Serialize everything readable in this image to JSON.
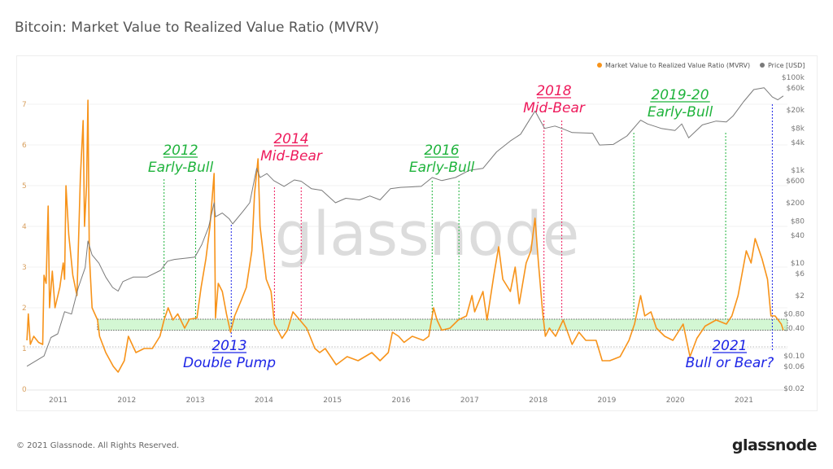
{
  "title": "Bitcoin: Market Value to Realized Value Ratio (MVRV)",
  "footer": "© 2021 Glassnode. All Rights Reserved.",
  "logo": "glassnode",
  "watermark": "glassnode",
  "colors": {
    "mvrv": "#f7931a",
    "price": "#7a7a7a",
    "green": "#1fb33c",
    "red": "#ee1b5c",
    "blue": "#1c24e6",
    "band": "#c8f5c8"
  },
  "chart_data": {
    "type": "line",
    "title": "Bitcoin: Market Value to Realized Value Ratio (MVRV)",
    "legend": {
      "position": "top-right",
      "items": [
        "Market Value to Realized Value Ratio (MVRV)",
        "Price [USD]"
      ]
    },
    "x_ticks": [
      "2011",
      "2012",
      "2013",
      "2014",
      "2015",
      "2016",
      "2017",
      "2018",
      "2019",
      "2020",
      "2021"
    ],
    "xlim": [
      2010.55,
      2021.6
    ],
    "y_left": {
      "ticks": [
        "0",
        "1",
        "2",
        "3",
        "4",
        "5",
        "6",
        "7"
      ],
      "range": [
        0,
        7.5
      ]
    },
    "y_right": {
      "scale": "log",
      "ticks": [
        "$100k",
        "$60k",
        "$20k",
        "$8k",
        "$4k",
        "$1k",
        "$600",
        "$200",
        "$80",
        "$40",
        "$10",
        "$6",
        "$2",
        "$0.80",
        "$0.40",
        "$0.10",
        "$0.06",
        "$0.02"
      ],
      "tick_values": [
        100000,
        60000,
        20000,
        8000,
        4000,
        1000,
        600,
        200,
        80,
        40,
        10,
        6,
        2,
        0.8,
        0.4,
        0.1,
        0.06,
        0.02
      ]
    },
    "grid": true,
    "reference_line": 1,
    "band": [
      1.45,
      1.72
    ],
    "series": [
      {
        "name": "Market Value to Realized Value Ratio (MVRV)",
        "axis": "left",
        "points": [
          [
            2010.55,
            1.2
          ],
          [
            2010.57,
            1.85
          ],
          [
            2010.6,
            1.1
          ],
          [
            2010.65,
            1.3
          ],
          [
            2010.72,
            1.15
          ],
          [
            2010.78,
            1.1
          ],
          [
            2010.8,
            2.8
          ],
          [
            2010.83,
            2.6
          ],
          [
            2010.86,
            4.5
          ],
          [
            2010.88,
            2.0
          ],
          [
            2010.92,
            2.9
          ],
          [
            2010.96,
            2.0
          ],
          [
            2011.03,
            2.5
          ],
          [
            2011.08,
            3.1
          ],
          [
            2011.1,
            2.7
          ],
          [
            2011.12,
            5.0
          ],
          [
            2011.16,
            3.8
          ],
          [
            2011.22,
            2.8
          ],
          [
            2011.28,
            2.3
          ],
          [
            2011.33,
            5.2
          ],
          [
            2011.37,
            6.6
          ],
          [
            2011.39,
            4.0
          ],
          [
            2011.42,
            5.0
          ],
          [
            2011.44,
            7.1
          ],
          [
            2011.46,
            3.3
          ],
          [
            2011.5,
            2.0
          ],
          [
            2011.58,
            1.7
          ],
          [
            2011.61,
            1.3
          ],
          [
            2011.7,
            0.9
          ],
          [
            2011.81,
            0.56
          ],
          [
            2011.88,
            0.42
          ],
          [
            2011.97,
            0.7
          ],
          [
            2012.03,
            1.3
          ],
          [
            2012.14,
            0.9
          ],
          [
            2012.26,
            1.0
          ],
          [
            2012.38,
            1.0
          ],
          [
            2012.49,
            1.3
          ],
          [
            2012.55,
            1.7
          ],
          [
            2012.61,
            2.0
          ],
          [
            2012.68,
            1.7
          ],
          [
            2012.75,
            1.85
          ],
          [
            2012.85,
            1.5
          ],
          [
            2012.92,
            1.72
          ],
          [
            2013.03,
            1.75
          ],
          [
            2013.09,
            2.5
          ],
          [
            2013.16,
            3.2
          ],
          [
            2013.22,
            4.0
          ],
          [
            2013.28,
            5.3
          ],
          [
            2013.3,
            1.75
          ],
          [
            2013.34,
            2.6
          ],
          [
            2013.4,
            2.4
          ],
          [
            2013.46,
            1.85
          ],
          [
            2013.52,
            1.4
          ],
          [
            2013.58,
            1.8
          ],
          [
            2013.68,
            2.2
          ],
          [
            2013.75,
            2.5
          ],
          [
            2013.83,
            3.4
          ],
          [
            2013.87,
            4.8
          ],
          [
            2013.92,
            5.66
          ],
          [
            2013.95,
            4.0
          ],
          [
            2014.04,
            2.7
          ],
          [
            2014.11,
            2.4
          ],
          [
            2014.16,
            1.6
          ],
          [
            2014.27,
            1.25
          ],
          [
            2014.35,
            1.45
          ],
          [
            2014.43,
            1.9
          ],
          [
            2014.53,
            1.7
          ],
          [
            2014.63,
            1.5
          ],
          [
            2014.75,
            1.0
          ],
          [
            2014.82,
            0.9
          ],
          [
            2014.9,
            1.0
          ],
          [
            2015.06,
            0.6
          ],
          [
            2015.22,
            0.8
          ],
          [
            2015.38,
            0.7
          ],
          [
            2015.58,
            0.9
          ],
          [
            2015.7,
            0.7
          ],
          [
            2015.82,
            0.9
          ],
          [
            2015.88,
            1.4
          ],
          [
            2015.97,
            1.3
          ],
          [
            2016.05,
            1.15
          ],
          [
            2016.17,
            1.3
          ],
          [
            2016.33,
            1.2
          ],
          [
            2016.41,
            1.3
          ],
          [
            2016.48,
            2.0
          ],
          [
            2016.53,
            1.7
          ],
          [
            2016.6,
            1.45
          ],
          [
            2016.72,
            1.5
          ],
          [
            2016.84,
            1.7
          ],
          [
            2016.96,
            1.8
          ],
          [
            2017.04,
            2.3
          ],
          [
            2017.08,
            1.9
          ],
          [
            2017.2,
            2.4
          ],
          [
            2017.26,
            1.7
          ],
          [
            2017.36,
            2.8
          ],
          [
            2017.43,
            3.5
          ],
          [
            2017.49,
            2.7
          ],
          [
            2017.6,
            2.4
          ],
          [
            2017.67,
            3.0
          ],
          [
            2017.73,
            2.1
          ],
          [
            2017.83,
            3.1
          ],
          [
            2017.9,
            3.4
          ],
          [
            2017.96,
            4.2
          ],
          [
            2018.01,
            3.1
          ],
          [
            2018.07,
            1.9
          ],
          [
            2018.11,
            1.3
          ],
          [
            2018.17,
            1.5
          ],
          [
            2018.26,
            1.3
          ],
          [
            2018.37,
            1.7
          ],
          [
            2018.5,
            1.1
          ],
          [
            2018.6,
            1.4
          ],
          [
            2018.7,
            1.2
          ],
          [
            2018.85,
            1.2
          ],
          [
            2018.94,
            0.7
          ],
          [
            2019.05,
            0.7
          ],
          [
            2019.2,
            0.8
          ],
          [
            2019.33,
            1.2
          ],
          [
            2019.41,
            1.6
          ],
          [
            2019.5,
            2.3
          ],
          [
            2019.56,
            1.8
          ],
          [
            2019.65,
            1.9
          ],
          [
            2019.73,
            1.5
          ],
          [
            2019.85,
            1.3
          ],
          [
            2019.97,
            1.2
          ],
          [
            2020.12,
            1.6
          ],
          [
            2020.22,
            0.8
          ],
          [
            2020.32,
            1.25
          ],
          [
            2020.44,
            1.55
          ],
          [
            2020.6,
            1.7
          ],
          [
            2020.75,
            1.6
          ],
          [
            2020.83,
            1.8
          ],
          [
            2020.92,
            2.3
          ],
          [
            2021.04,
            3.4
          ],
          [
            2021.11,
            3.1
          ],
          [
            2021.17,
            3.7
          ],
          [
            2021.27,
            3.2
          ],
          [
            2021.35,
            2.7
          ],
          [
            2021.4,
            1.8
          ],
          [
            2021.46,
            1.8
          ],
          [
            2021.55,
            1.6
          ],
          [
            2021.58,
            1.45
          ]
        ]
      },
      {
        "name": "Price [USD]",
        "axis": "right",
        "points": [
          [
            2010.55,
            0.06
          ],
          [
            2010.8,
            0.1
          ],
          [
            2010.9,
            0.25
          ],
          [
            2011.0,
            0.3
          ],
          [
            2011.1,
            0.9
          ],
          [
            2011.2,
            0.8
          ],
          [
            2011.3,
            3
          ],
          [
            2011.4,
            8
          ],
          [
            2011.44,
            30
          ],
          [
            2011.5,
            15
          ],
          [
            2011.6,
            10
          ],
          [
            2011.7,
            5
          ],
          [
            2011.8,
            3
          ],
          [
            2011.88,
            2.5
          ],
          [
            2011.95,
            4
          ],
          [
            2012.1,
            5
          ],
          [
            2012.3,
            5
          ],
          [
            2012.5,
            7
          ],
          [
            2012.6,
            11
          ],
          [
            2012.7,
            12
          ],
          [
            2012.9,
            13
          ],
          [
            2013.0,
            13.5
          ],
          [
            2013.1,
            25
          ],
          [
            2013.2,
            60
          ],
          [
            2013.28,
            200
          ],
          [
            2013.3,
            100
          ],
          [
            2013.4,
            120
          ],
          [
            2013.5,
            90
          ],
          [
            2013.55,
            70
          ],
          [
            2013.7,
            130
          ],
          [
            2013.8,
            200
          ],
          [
            2013.9,
            1100
          ],
          [
            2013.95,
            700
          ],
          [
            2014.05,
            850
          ],
          [
            2014.15,
            600
          ],
          [
            2014.3,
            450
          ],
          [
            2014.45,
            620
          ],
          [
            2014.55,
            580
          ],
          [
            2014.7,
            400
          ],
          [
            2014.85,
            370
          ],
          [
            2015.05,
            200
          ],
          [
            2015.2,
            250
          ],
          [
            2015.4,
            230
          ],
          [
            2015.55,
            280
          ],
          [
            2015.7,
            230
          ],
          [
            2015.85,
            400
          ],
          [
            2016.0,
            430
          ],
          [
            2016.3,
            450
          ],
          [
            2016.46,
            700
          ],
          [
            2016.6,
            600
          ],
          [
            2016.8,
            700
          ],
          [
            2017.0,
            1000
          ],
          [
            2017.2,
            1100
          ],
          [
            2017.4,
            2500
          ],
          [
            2017.6,
            4300
          ],
          [
            2017.75,
            6000
          ],
          [
            2017.96,
            19000
          ],
          [
            2018.1,
            8000
          ],
          [
            2018.25,
            9000
          ],
          [
            2018.35,
            8000
          ],
          [
            2018.5,
            6500
          ],
          [
            2018.8,
            6300
          ],
          [
            2018.9,
            3500
          ],
          [
            2019.1,
            3600
          ],
          [
            2019.3,
            5500
          ],
          [
            2019.5,
            12000
          ],
          [
            2019.6,
            10000
          ],
          [
            2019.8,
            8000
          ],
          [
            2020.0,
            7200
          ],
          [
            2020.1,
            10000
          ],
          [
            2020.2,
            5000
          ],
          [
            2020.4,
            9500
          ],
          [
            2020.6,
            11500
          ],
          [
            2020.75,
            11000
          ],
          [
            2020.85,
            15000
          ],
          [
            2021.0,
            30000
          ],
          [
            2021.15,
            55000
          ],
          [
            2021.3,
            60000
          ],
          [
            2021.42,
            38000
          ],
          [
            2021.5,
            33000
          ],
          [
            2021.58,
            40000
          ]
        ]
      }
    ],
    "annotations": [
      {
        "year": "2012",
        "label": "Early-Bull",
        "color": "green",
        "lines": [
          2012.55,
          2013.01
        ]
      },
      {
        "year": "2013",
        "label": "Double Pump",
        "color": "blue",
        "lines": [
          2013.53
        ]
      },
      {
        "year": "2014",
        "label": "Mid-Bear",
        "color": "red",
        "lines": [
          2014.16,
          2014.55
        ]
      },
      {
        "year": "2016",
        "label": "Early-Bull",
        "color": "green",
        "lines": [
          2016.46,
          2016.85
        ]
      },
      {
        "year": "2018",
        "label": "Mid-Bear",
        "color": "red",
        "lines": [
          2018.09,
          2018.35
        ]
      },
      {
        "year": "2019-20",
        "label": "Early-Bull",
        "color": "green",
        "lines": [
          2019.4,
          2020.74
        ]
      },
      {
        "year": "2021",
        "label": "Bull or Bear?",
        "color": "blue",
        "lines": [
          2021.42
        ]
      }
    ]
  }
}
